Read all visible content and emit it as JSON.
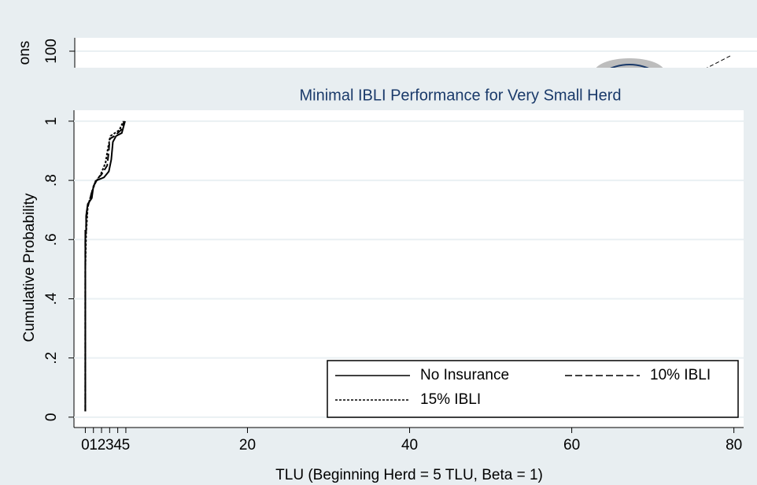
{
  "background_window": {
    "tick_label": "100",
    "axis_label_fragment": "ons"
  },
  "chart_data": {
    "type": "line",
    "title": "Minimal IBLI Performance for Very Small Herd",
    "xlabel": "TLU (Beginning Herd = 5 TLU, Beta = 1)",
    "ylabel": "Cumulative Probability",
    "xlim": [
      -1.4,
      81.2
    ],
    "ylim": [
      -0.035,
      1.037
    ],
    "xticks": [
      0,
      1,
      2,
      3,
      4,
      5,
      20,
      40,
      60,
      80
    ],
    "yticks": [
      0,
      {
        "value": 0.2,
        "label": ".2"
      },
      {
        "value": 0.4,
        "label": ".4"
      },
      {
        "value": 0.6,
        "label": ".6"
      },
      {
        "value": 0.8,
        "label": ".8"
      },
      1
    ],
    "grid": true,
    "legend": "bottom-right",
    "series": [
      {
        "name": "No Insurance",
        "color": "#000000",
        "dash": "solid",
        "x": [
          0,
          0,
          0.1,
          0.1,
          0.3,
          0.8,
          1.0,
          1.4,
          2.3,
          2.9,
          3.2,
          3.4,
          3.8,
          4.5,
          4.9
        ],
        "values": [
          0.02,
          0.63,
          0.63,
          0.68,
          0.72,
          0.74,
          0.78,
          0.8,
          0.81,
          0.83,
          0.87,
          0.93,
          0.95,
          0.96,
          1.0
        ]
      },
      {
        "name": "10% IBLI",
        "color": "#000000",
        "dash": "dashed",
        "x": [
          0,
          0,
          0.2,
          0.5,
          0.9,
          1.3,
          2.0,
          2.7,
          2.9,
          3.0,
          3.6,
          4.4,
          4.8
        ],
        "values": [
          0.02,
          0.6,
          0.7,
          0.73,
          0.77,
          0.8,
          0.82,
          0.85,
          0.9,
          0.94,
          0.95,
          0.97,
          1.0
        ]
      },
      {
        "name": "15% IBLI",
        "color": "#000000",
        "dash": "dotted",
        "x": [
          0,
          0,
          0.1,
          0.3,
          0.8,
          1.2,
          1.9,
          2.5,
          2.8,
          3.1,
          4.2,
          4.7
        ],
        "values": [
          0.02,
          0.5,
          0.62,
          0.71,
          0.76,
          0.79,
          0.82,
          0.86,
          0.91,
          0.95,
          0.97,
          1.0
        ]
      }
    ]
  }
}
